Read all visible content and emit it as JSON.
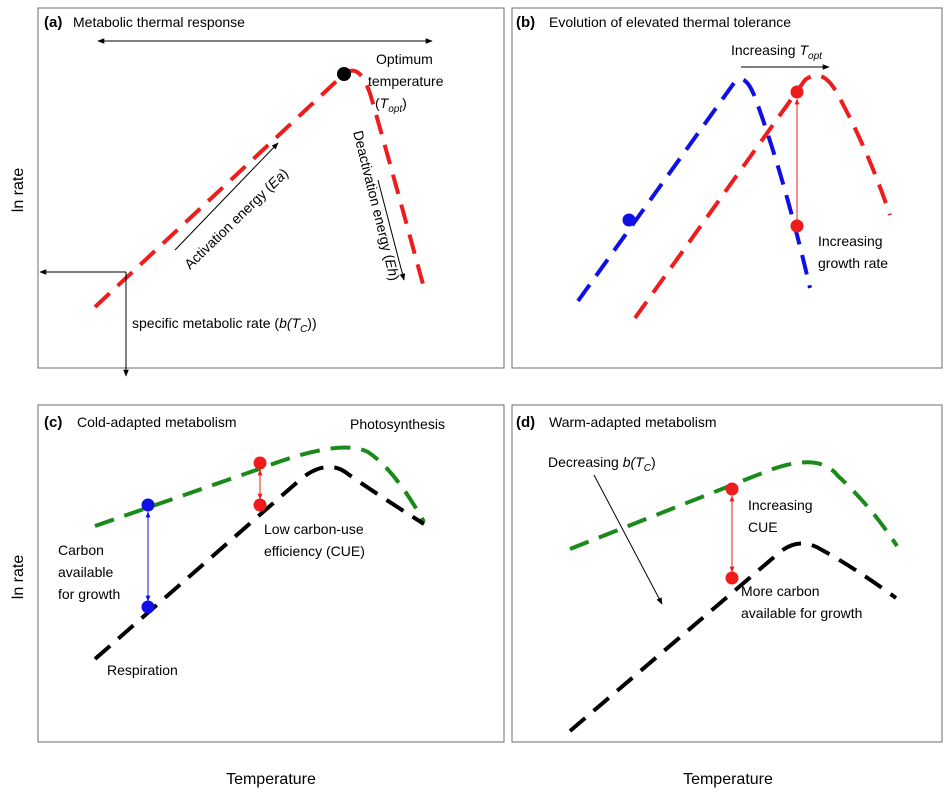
{
  "axes": {
    "y_label": "ln rate",
    "x_label": "Temperature"
  },
  "panels": {
    "a": {
      "tag": "(a)",
      "title": "Metabolic thermal response",
      "optimum_line1": "Optimum",
      "optimum_line2": "temperature",
      "optimum_line3_open": "(",
      "optimum_sym": "T",
      "optimum_sub": "opt",
      "optimum_line3_close": ")",
      "activation": "Activation energy (",
      "activation_sym": "Ea",
      "activation_close": ")",
      "deactivation": "Deactivation energy (",
      "deactivation_sym": "Eh",
      "deactivation_close": ")",
      "specific_rate": "specific metabolic rate (",
      "specific_sym": "b(T",
      "specific_sub": "C",
      "specific_close": "))"
    },
    "b": {
      "tag": "(b)",
      "title": "Evolution of elevated thermal tolerance",
      "increasing_topt": "Increasing ",
      "topt_sym": "T",
      "topt_sub": "opt",
      "growth_line1": "Increasing",
      "growth_line2": "growth rate"
    },
    "c": {
      "tag": "(c)",
      "title": "Cold-adapted metabolism",
      "photosynthesis": "Photosynthesis",
      "carbon_line1": "Carbon",
      "carbon_line2": "available",
      "carbon_line3": "for growth",
      "cue_line1": "Low carbon-use",
      "cue_line2": "efficiency (CUE)",
      "respiration": "Respiration"
    },
    "d": {
      "tag": "(d)",
      "title": "Warm-adapted metabolism",
      "decreasing": "Decreasing ",
      "decreasing_sym": "b(T",
      "decreasing_sub": "C",
      "decreasing_close": ")",
      "cue_line1": "Increasing",
      "cue_line2": "CUE",
      "more_line1": "More carbon",
      "more_line2": "available for growth"
    }
  },
  "colors": {
    "red": "#ee1c1c",
    "blue": "#1010e6",
    "green": "#1a8a1a",
    "black": "#000000",
    "frame": "#6e6e6e"
  }
}
